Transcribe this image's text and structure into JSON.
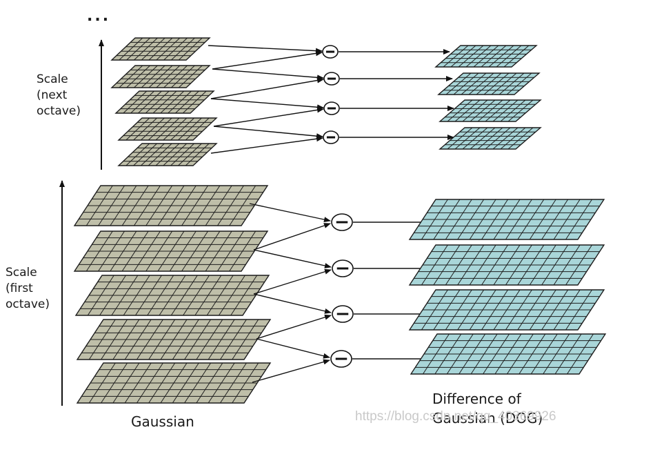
{
  "colors": {
    "gaussian_fill": "#bfbfa9",
    "dog_fill": "#a9d6d9",
    "grid_line": "#1c1c1c",
    "arrow": "#111111"
  },
  "labels": {
    "ellipsis": "...",
    "scale_next": [
      "Scale",
      "(next",
      "octave)"
    ],
    "scale_first": [
      "Scale",
      "(first",
      "octave)"
    ],
    "gaussian_caption": "Gaussian",
    "dog_caption_line1": "Difference of",
    "dog_caption_line2": "Gaussian (DOG)",
    "watermark": "https://blog.csdn.net/qq_40369926",
    "minus_symbol": "−"
  },
  "octaves": [
    {
      "name": "next-octave",
      "gaussian_levels": 5,
      "dog_levels": 4,
      "grid_cols": 10,
      "grid_rows": 5
    },
    {
      "name": "first-octave",
      "gaussian_levels": 5,
      "dog_levels": 4,
      "grid_cols": 14,
      "grid_rows": 6
    }
  ]
}
